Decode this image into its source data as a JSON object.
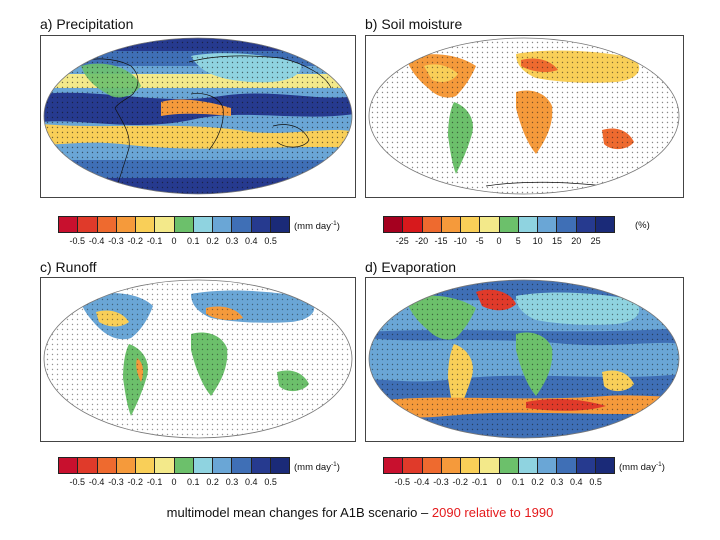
{
  "panels": [
    {
      "title": "a) Precipitation",
      "full_ocean": true,
      "base": "ocean"
    },
    {
      "title": "b) Soil moisture",
      "full_ocean": false,
      "base": "land"
    },
    {
      "title": "c) Runoff",
      "full_ocean": false,
      "base": "land"
    },
    {
      "title": "d) Evaporation",
      "full_ocean": true,
      "base": "ocean"
    }
  ],
  "colorbars": [
    {
      "ticks": [
        "-0.5",
        "-0.4",
        "-0.3",
        "-0.2",
        "-0.1",
        "0",
        "0.1",
        "0.2",
        "0.3",
        "0.4",
        "0.5"
      ],
      "unit": "(mm day",
      "unit_sup": "-1",
      "unit_close": ")"
    },
    {
      "ticks": [
        "-25",
        "-20",
        "-15",
        "-10",
        "-5",
        "0",
        "5",
        "10",
        "15",
        "20",
        "25"
      ],
      "unit": "(%)",
      "unit_sup": "",
      "unit_close": ""
    },
    {
      "ticks": [
        "-0.5",
        "-0.4",
        "-0.3",
        "-0.2",
        "-0.1",
        "0",
        "0.1",
        "0.2",
        "0.3",
        "0.4",
        "0.5"
      ],
      "unit": "(mm day",
      "unit_sup": "-1",
      "unit_close": ")"
    },
    {
      "ticks": [
        "-0.5",
        "-0.4",
        "-0.3",
        "-0.2",
        "-0.1",
        "0",
        "0.1",
        "0.2",
        "0.3",
        "0.4",
        "0.5"
      ],
      "unit": "(mm day",
      "unit_sup": "-1",
      "unit_close": ")"
    }
  ],
  "palette": [
    "#c8102e",
    "#e03a2a",
    "#ee6a2f",
    "#f59a3b",
    "#f9cf58",
    "#f3e98a",
    "#6cc06b",
    "#8fd3e0",
    "#6aa6d6",
    "#3f6fb6",
    "#263a8f",
    "#1a2a78"
  ],
  "colors": {
    "land_neutral": "#f3e98a",
    "ocean_base": "#6aa6d6",
    "stipple": "#1a1a1a"
  },
  "caption": {
    "main": "multimodel mean changes for A1B scenario – ",
    "highlight": "2090 relative to 1990"
  }
}
